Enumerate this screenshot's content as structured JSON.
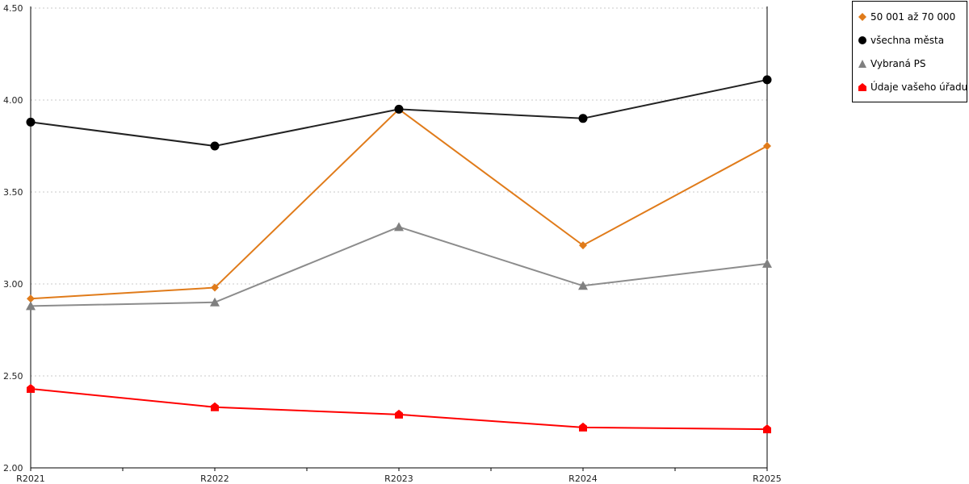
{
  "chart_data": {
    "type": "line",
    "categories": [
      "R2021",
      "R2022",
      "R2023",
      "R2024",
      "R2025"
    ],
    "ylim": [
      2.0,
      4.5
    ],
    "yticks": [
      "2.00",
      "2.50",
      "3.00",
      "3.50",
      "4.00",
      "4.50"
    ],
    "grid": true,
    "legend_position": "top-right",
    "series": [
      {
        "name": "50 001 až 70 000",
        "color": "#e07b1a",
        "marker": "diamond",
        "values": [
          2.92,
          2.98,
          3.95,
          3.21,
          3.75
        ]
      },
      {
        "name": "všechna města",
        "color": "#000000",
        "line_color": "#222222",
        "marker": "circle",
        "values": [
          3.88,
          3.75,
          3.95,
          3.9,
          4.11
        ]
      },
      {
        "name": "Vybraná PS",
        "color": "#808080",
        "line_color": "#8c8c8c",
        "marker": "triangle",
        "values": [
          2.88,
          2.9,
          3.31,
          2.99,
          3.11
        ]
      },
      {
        "name": "Údaje vašeho úřadu",
        "color": "#ff0000",
        "marker": "house",
        "values": [
          2.43,
          2.33,
          2.29,
          2.22,
          2.21
        ]
      }
    ]
  }
}
